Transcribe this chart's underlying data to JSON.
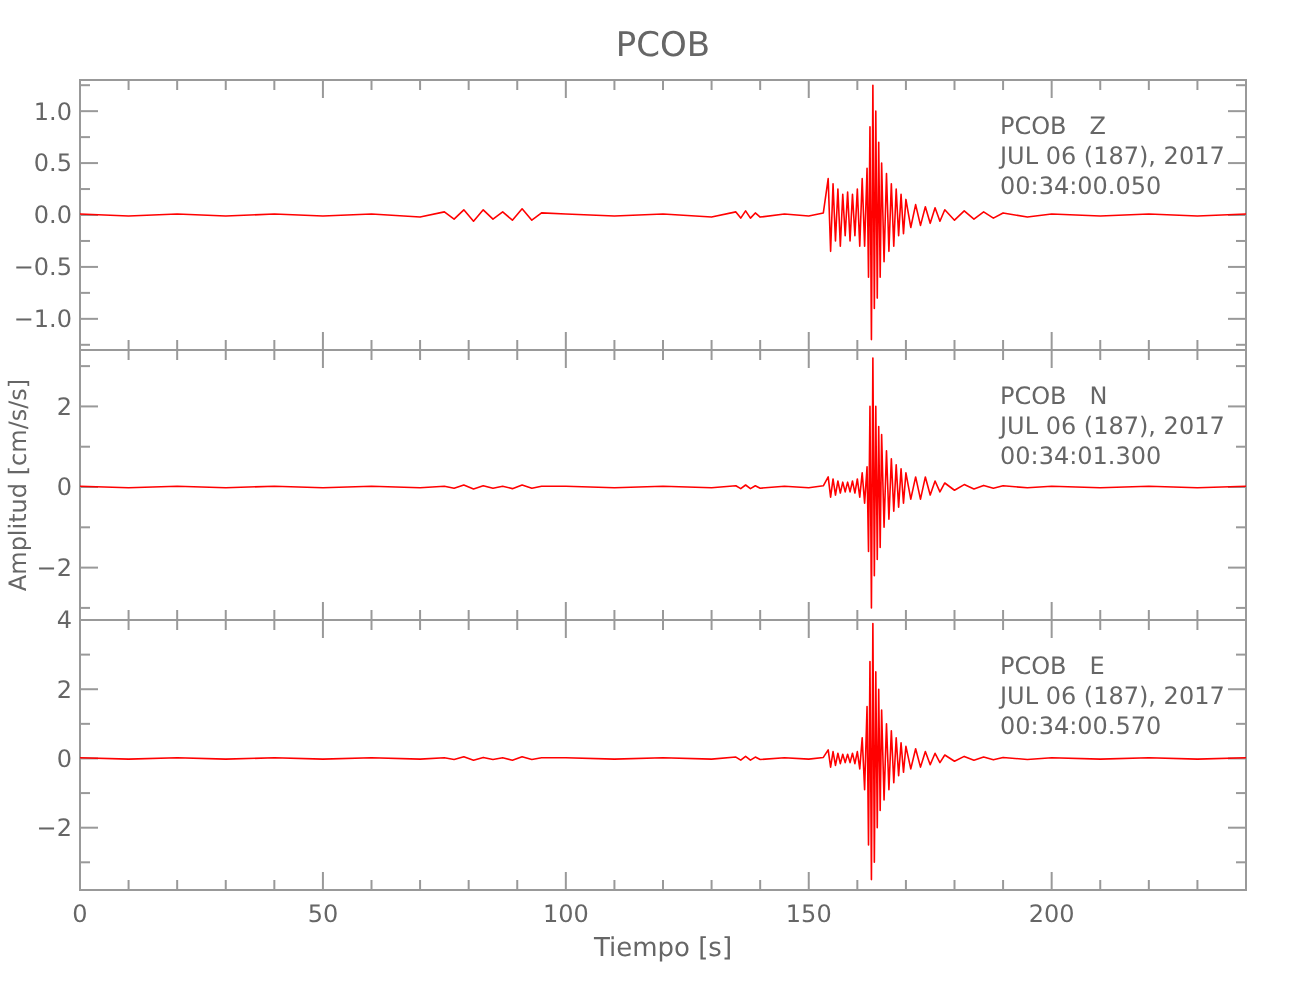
{
  "chart_data": [
    {
      "type": "line",
      "title": "PCOB",
      "annotations": [
        "PCOB   Z",
        "JUL 06 (187), 2017",
        "00:34:00.050"
      ],
      "tick_labels": "y",
      "grid": false,
      "marker": "none",
      "line_style": "solid",
      "xlim": [
        0,
        240
      ],
      "xticks": [
        0,
        {
          "value": 10,
          "label": null
        },
        {
          "value": 20,
          "label": null
        },
        {
          "value": 30,
          "label": null
        },
        {
          "value": 40,
          "label": null
        },
        50,
        {
          "value": 60,
          "label": null
        },
        {
          "value": 70,
          "label": null
        },
        {
          "value": 80,
          "label": null
        },
        {
          "value": 90,
          "label": null
        },
        100,
        {
          "value": 110,
          "label": null
        },
        {
          "value": 120,
          "label": null
        },
        {
          "value": 130,
          "label": null
        },
        {
          "value": 140,
          "label": null
        },
        150,
        {
          "value": 160,
          "label": null
        },
        {
          "value": 170,
          "label": null
        },
        {
          "value": 180,
          "label": null
        },
        {
          "value": 190,
          "label": null
        },
        200,
        {
          "value": 210,
          "label": null
        },
        {
          "value": 220,
          "label": null
        },
        {
          "value": 230,
          "label": null
        },
        {
          "value": 240,
          "label": null
        }
      ],
      "ylim": [
        -1.3,
        1.3
      ],
      "yticks": [
        {
          "value": -1.25,
          "label": null
        },
        {
          "value": -1,
          "label": "−1.0"
        },
        {
          "value": -0.75,
          "label": null
        },
        {
          "value": -0.5,
          "label": "−0.5"
        },
        {
          "value": -0.25,
          "label": null
        },
        {
          "value": 0,
          "label": "0.0"
        },
        {
          "value": 0.25,
          "label": null
        },
        {
          "value": 0.5,
          "label": "0.5"
        },
        {
          "value": 0.75,
          "label": null
        },
        {
          "value": 1,
          "label": "1.0"
        },
        {
          "value": 1.25,
          "label": null
        }
      ],
      "x": [
        0,
        10,
        20,
        30,
        40,
        50,
        60,
        70,
        75,
        77,
        79,
        81,
        83,
        85,
        87,
        89,
        91,
        93,
        95,
        100,
        110,
        120,
        130,
        135,
        136,
        137,
        138,
        139,
        140,
        145,
        150,
        153,
        154,
        154.5,
        155,
        155.5,
        156,
        156.5,
        157,
        157.5,
        158,
        158.5,
        159,
        159.5,
        160,
        160.5,
        161,
        161.5,
        162,
        162.3,
        162.6,
        162.9,
        163.2,
        163.5,
        163.8,
        164.1,
        164.4,
        164.7,
        165,
        165.5,
        166,
        166.5,
        167,
        167.5,
        168,
        168.5,
        169,
        169.5,
        170,
        171,
        172,
        173,
        174,
        175,
        176,
        177,
        178,
        180,
        182,
        184,
        186,
        188,
        190,
        195,
        200,
        210,
        220,
        230,
        240
      ],
      "series": [
        {
          "color": "#ff0000",
          "values": [
            0.01,
            -0.01,
            0.01,
            -0.01,
            0.01,
            -0.01,
            0.01,
            -0.02,
            0.03,
            -0.04,
            0.05,
            -0.06,
            0.05,
            -0.04,
            0.03,
            -0.05,
            0.06,
            -0.05,
            0.02,
            0.01,
            -0.01,
            0.01,
            -0.02,
            0.03,
            -0.03,
            0.04,
            -0.03,
            0.02,
            -0.02,
            0.01,
            -0.01,
            0.02,
            0.35,
            -0.35,
            0.3,
            -0.25,
            0.25,
            -0.3,
            0.2,
            -0.2,
            0.22,
            -0.25,
            0.2,
            -0.2,
            0.25,
            -0.3,
            0.35,
            -0.3,
            0.45,
            -0.6,
            0.85,
            -1.2,
            1.25,
            -0.9,
            1.0,
            -0.8,
            0.7,
            -0.6,
            0.5,
            -0.45,
            0.4,
            -0.35,
            0.3,
            -0.3,
            0.25,
            -0.2,
            0.2,
            -0.18,
            0.15,
            -0.12,
            0.1,
            -0.1,
            0.08,
            -0.08,
            0.07,
            -0.06,
            0.05,
            -0.05,
            0.04,
            -0.04,
            0.03,
            -0.03,
            0.02,
            -0.02,
            0.01,
            -0.01,
            0.01,
            -0.01,
            0.01
          ]
        }
      ]
    },
    {
      "type": "line",
      "ylabel": "Amplitud [cm/s/s]",
      "annotations": [
        "PCOB   N",
        "JUL 06 (187), 2017",
        "00:34:01.300"
      ],
      "tick_labels": "y",
      "grid": false,
      "marker": "none",
      "line_style": "solid",
      "xlim": [
        0,
        240
      ],
      "xticks": [
        0,
        {
          "value": 10,
          "label": null
        },
        {
          "value": 20,
          "label": null
        },
        {
          "value": 30,
          "label": null
        },
        {
          "value": 40,
          "label": null
        },
        50,
        {
          "value": 60,
          "label": null
        },
        {
          "value": 70,
          "label": null
        },
        {
          "value": 80,
          "label": null
        },
        {
          "value": 90,
          "label": null
        },
        100,
        {
          "value": 110,
          "label": null
        },
        {
          "value": 120,
          "label": null
        },
        {
          "value": 130,
          "label": null
        },
        {
          "value": 140,
          "label": null
        },
        150,
        {
          "value": 160,
          "label": null
        },
        {
          "value": 170,
          "label": null
        },
        {
          "value": 180,
          "label": null
        },
        {
          "value": 190,
          "label": null
        },
        200,
        {
          "value": 210,
          "label": null
        },
        {
          "value": 220,
          "label": null
        },
        {
          "value": 230,
          "label": null
        },
        {
          "value": 240,
          "label": null
        }
      ],
      "ylim": [
        -3.3,
        3.4
      ],
      "yticks": [
        {
          "value": -3,
          "label": null
        },
        {
          "value": -2,
          "label": "−2"
        },
        {
          "value": -1,
          "label": null
        },
        0,
        {
          "value": 1,
          "label": null
        },
        2,
        {
          "value": 3,
          "label": null
        }
      ],
      "x": [
        0,
        10,
        20,
        30,
        40,
        50,
        60,
        70,
        75,
        77,
        79,
        81,
        83,
        85,
        87,
        89,
        91,
        93,
        95,
        100,
        110,
        120,
        130,
        135,
        136,
        137,
        138,
        139,
        140,
        145,
        150,
        153,
        154,
        154.5,
        155,
        155.5,
        156,
        156.5,
        157,
        157.5,
        158,
        158.5,
        159,
        159.5,
        160,
        160.5,
        161,
        161.5,
        162,
        162.3,
        162.6,
        162.9,
        163.2,
        163.5,
        163.8,
        164.1,
        164.4,
        164.7,
        165,
        165.5,
        166,
        166.5,
        167,
        167.5,
        168,
        168.5,
        169,
        169.5,
        170,
        171,
        172,
        173,
        174,
        175,
        176,
        177,
        178,
        180,
        182,
        184,
        186,
        188,
        190,
        195,
        200,
        210,
        220,
        230,
        240
      ],
      "series": [
        {
          "color": "#ff0000",
          "values": [
            0.02,
            -0.02,
            0.02,
            -0.02,
            0.02,
            -0.02,
            0.02,
            -0.02,
            0.02,
            -0.03,
            0.05,
            -0.05,
            0.03,
            -0.03,
            0.02,
            -0.04,
            0.05,
            -0.03,
            0.02,
            0.02,
            -0.02,
            0.02,
            -0.02,
            0.03,
            -0.04,
            0.05,
            -0.04,
            0.03,
            -0.03,
            0.02,
            -0.02,
            0.03,
            0.25,
            -0.25,
            0.2,
            -0.2,
            0.15,
            -0.15,
            0.12,
            -0.12,
            0.12,
            -0.12,
            0.15,
            -0.15,
            0.2,
            -0.25,
            0.35,
            -0.4,
            0.5,
            -1.6,
            2.0,
            -3.0,
            3.2,
            -2.2,
            2.0,
            -1.8,
            1.5,
            -1.5,
            1.3,
            -1.0,
            0.9,
            -0.8,
            0.7,
            -0.6,
            0.55,
            -0.5,
            0.45,
            -0.4,
            0.35,
            -0.3,
            0.25,
            -0.3,
            0.25,
            -0.2,
            0.15,
            -0.12,
            0.1,
            -0.08,
            0.06,
            -0.05,
            0.04,
            -0.03,
            0.03,
            -0.02,
            0.02,
            -0.02,
            0.02,
            -0.02,
            0.02
          ]
        }
      ]
    },
    {
      "type": "line",
      "xlabel": "Tiempo [s]",
      "annotations": [
        "PCOB   E",
        "JUL 06 (187), 2017",
        "00:34:00.570"
      ],
      "grid": false,
      "marker": "none",
      "line_style": "solid",
      "xlim": [
        0,
        240
      ],
      "xticks": [
        0,
        {
          "value": 10,
          "label": null
        },
        {
          "value": 20,
          "label": null
        },
        {
          "value": 30,
          "label": null
        },
        {
          "value": 40,
          "label": null
        },
        50,
        {
          "value": 60,
          "label": null
        },
        {
          "value": 70,
          "label": null
        },
        {
          "value": 80,
          "label": null
        },
        {
          "value": 90,
          "label": null
        },
        100,
        {
          "value": 110,
          "label": null
        },
        {
          "value": 120,
          "label": null
        },
        {
          "value": 130,
          "label": null
        },
        {
          "value": 140,
          "label": null
        },
        150,
        {
          "value": 160,
          "label": null
        },
        {
          "value": 170,
          "label": null
        },
        {
          "value": 180,
          "label": null
        },
        {
          "value": 190,
          "label": null
        },
        200,
        {
          "value": 210,
          "label": null
        },
        {
          "value": 220,
          "label": null
        },
        {
          "value": 230,
          "label": null
        },
        {
          "value": 240,
          "label": null
        }
      ],
      "ylim": [
        -3.8,
        4
      ],
      "yticks": [
        {
          "value": -3,
          "label": null
        },
        {
          "value": -2,
          "label": "−2"
        },
        {
          "value": -1,
          "label": null
        },
        0,
        {
          "value": 1,
          "label": null
        },
        2,
        {
          "value": 3,
          "label": null
        },
        4
      ],
      "x": [
        0,
        10,
        20,
        30,
        40,
        50,
        60,
        70,
        75,
        77,
        79,
        81,
        83,
        85,
        87,
        89,
        91,
        93,
        95,
        100,
        110,
        120,
        130,
        135,
        136,
        137,
        138,
        139,
        140,
        145,
        150,
        153,
        154,
        154.5,
        155,
        155.5,
        156,
        156.5,
        157,
        157.5,
        158,
        158.5,
        159,
        159.5,
        160,
        160.5,
        161,
        161.5,
        162,
        162.3,
        162.6,
        162.9,
        163.2,
        163.5,
        163.8,
        164.1,
        164.4,
        164.7,
        165,
        165.5,
        166,
        166.5,
        167,
        167.5,
        168,
        168.5,
        169,
        169.5,
        170,
        171,
        172,
        173,
        174,
        175,
        176,
        177,
        178,
        180,
        182,
        184,
        186,
        188,
        190,
        195,
        200,
        210,
        220,
        230,
        240
      ],
      "series": [
        {
          "color": "#ff0000",
          "values": [
            0.02,
            -0.02,
            0.02,
            -0.02,
            0.02,
            -0.02,
            0.02,
            -0.02,
            0.02,
            -0.03,
            0.05,
            -0.05,
            0.03,
            -0.03,
            0.02,
            -0.05,
            0.05,
            -0.03,
            0.02,
            0.02,
            -0.02,
            0.02,
            -0.02,
            0.04,
            -0.05,
            0.06,
            -0.05,
            0.04,
            -0.03,
            0.02,
            -0.02,
            0.03,
            0.25,
            -0.25,
            0.2,
            -0.2,
            0.15,
            -0.15,
            0.12,
            -0.12,
            0.12,
            -0.12,
            0.15,
            -0.15,
            0.2,
            -0.3,
            0.6,
            -0.9,
            1.5,
            -2.5,
            2.8,
            -3.5,
            3.9,
            -3.0,
            2.5,
            -2.0,
            2.0,
            -1.5,
            1.4,
            -1.2,
            1.0,
            -0.9,
            0.8,
            -0.7,
            0.6,
            -0.5,
            0.45,
            -0.4,
            0.35,
            -0.3,
            0.28,
            -0.25,
            0.2,
            -0.18,
            0.15,
            -0.12,
            0.1,
            -0.08,
            0.06,
            -0.05,
            0.04,
            -0.04,
            0.03,
            -0.03,
            0.02,
            -0.02,
            0.02,
            -0.02,
            0.02
          ]
        }
      ]
    }
  ]
}
